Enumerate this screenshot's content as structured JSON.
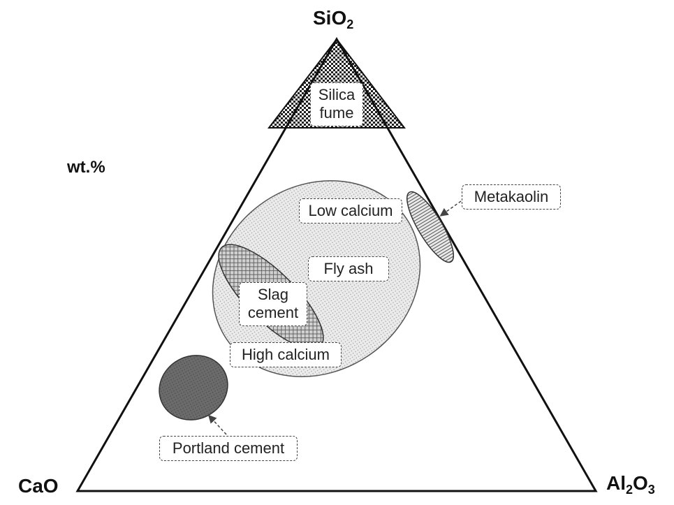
{
  "diagram": {
    "vertices": {
      "top": {
        "base": "SiO",
        "sub": "2"
      },
      "left": {
        "base": "CaO",
        "sub": ""
      },
      "right": {
        "base": "Al",
        "sub1": "2",
        "mid": "O",
        "sub2": "3"
      }
    },
    "units": "wt.%",
    "regions": {
      "silica_fume": {
        "line1": "Silica",
        "line2": "fume"
      },
      "fly_ash_low": "Low calcium",
      "fly_ash": "Fly ash",
      "fly_ash_high": "High calcium",
      "slag_cement": {
        "line1": "Slag",
        "line2": "cement"
      },
      "metakaolin": "Metakaolin",
      "portland_cement": "Portland cement"
    },
    "colors": {
      "outline": "#111111",
      "fly_ash_fill": "#e6e6e6",
      "slag_fill": "#a8a8a8",
      "portland_fill": "#6e6e6e",
      "silica_fume_fill": "#2a2a2a",
      "metakaolin_fill": "#bdbdbd"
    }
  }
}
